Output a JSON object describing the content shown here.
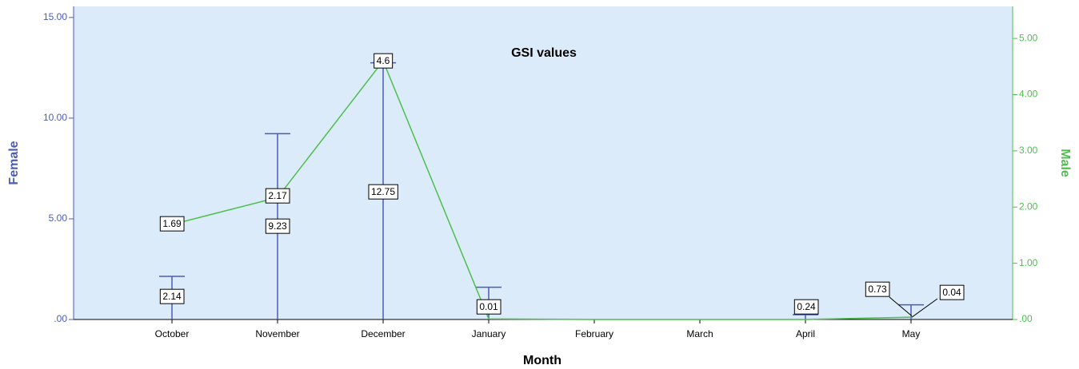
{
  "chart_data": {
    "type": "bar-line",
    "title": "GSI values",
    "x_label": "Month",
    "y_label": "Female",
    "y2_label": "Male",
    "categories": [
      "October",
      "November",
      "December",
      "January",
      "February",
      "March",
      "April",
      "May"
    ],
    "series": [
      {
        "name": "Female",
        "type": "highlow",
        "color": "#4a5bb8",
        "values": [
          2.14,
          9.23,
          12.75,
          1.6,
          null,
          null,
          0.24,
          0.73
        ],
        "value_labels": [
          "2.14",
          "9.23",
          "12.75",
          null,
          null,
          null,
          "0.24",
          "0.73"
        ]
      },
      {
        "name": "Male",
        "type": "line",
        "axis": "y2",
        "color": "#4cbf4c",
        "values": [
          1.69,
          2.17,
          4.6,
          0.01,
          0,
          0,
          0,
          0.04
        ],
        "value_labels": [
          "1.69",
          "2.17",
          "4.6",
          "0.01",
          null,
          null,
          null,
          "0.04"
        ]
      }
    ],
    "ylim": [
      0,
      15.55
    ],
    "yticks": [
      {
        "value": 0,
        "label": ".00"
      },
      {
        "value": 5,
        "label": "5.00"
      },
      {
        "value": 10,
        "label": "10.00"
      },
      {
        "value": 15,
        "label": "15.00"
      }
    ],
    "y2lim": [
      0,
      5.57
    ],
    "y2ticks": [
      {
        "value": 0,
        "label": ".00"
      },
      {
        "value": 1,
        "label": "1.00"
      },
      {
        "value": 2,
        "label": "2.00"
      },
      {
        "value": 3,
        "label": "3.00"
      },
      {
        "value": 4,
        "label": "4.00"
      },
      {
        "value": 5,
        "label": "5.00"
      }
    ]
  }
}
